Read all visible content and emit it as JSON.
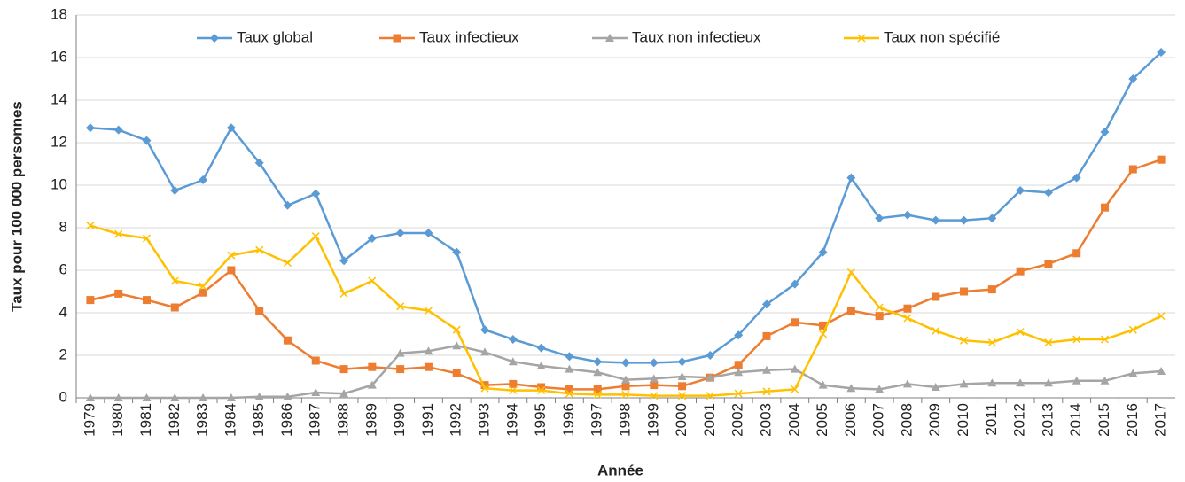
{
  "chart_data": {
    "type": "line",
    "x_label": "Année",
    "y_label": "Taux pour 100 000 personnes",
    "categories": [
      "1979",
      "1980",
      "1981",
      "1982",
      "1983",
      "1984",
      "1985",
      "1986",
      "1987",
      "1988",
      "1989",
      "1990",
      "1991",
      "1992",
      "1993",
      "1994",
      "1995",
      "1996",
      "1997",
      "1998",
      "1999",
      "2000",
      "2001",
      "2002",
      "2003",
      "2004",
      "2005",
      "2006",
      "2007",
      "2008",
      "2009",
      "2010",
      "2011",
      "2012",
      "2013",
      "2014",
      "2015",
      "2016",
      "2017"
    ],
    "series": [
      {
        "name": "Taux global",
        "color": "#5b9bd5",
        "marker": "diamond",
        "values": [
          12.7,
          12.6,
          12.1,
          9.75,
          10.25,
          12.7,
          11.05,
          9.05,
          9.6,
          6.45,
          7.5,
          7.75,
          7.75,
          6.85,
          3.2,
          2.75,
          2.35,
          1.95,
          1.7,
          1.65,
          1.65,
          1.7,
          2.0,
          2.95,
          4.4,
          5.35,
          6.85,
          10.35,
          8.45,
          8.6,
          8.35,
          8.35,
          8.45,
          9.75,
          9.65,
          10.35,
          12.5,
          15.0,
          16.25
        ]
      },
      {
        "name": "Taux infectieux",
        "color": "#ed7d31",
        "marker": "square",
        "values": [
          4.6,
          4.9,
          4.6,
          4.25,
          4.95,
          6.0,
          4.1,
          2.7,
          1.75,
          1.35,
          1.45,
          1.35,
          1.45,
          1.15,
          0.6,
          0.65,
          0.5,
          0.4,
          0.4,
          0.55,
          0.6,
          0.55,
          0.95,
          1.55,
          2.9,
          3.55,
          3.4,
          4.1,
          3.85,
          4.2,
          4.75,
          5.0,
          5.1,
          5.95,
          6.3,
          6.8,
          8.95,
          10.75,
          11.2
        ]
      },
      {
        "name": "Taux non infectieux",
        "color": "#a5a5a5",
        "marker": "triangle",
        "values": [
          0,
          0,
          0,
          0,
          0,
          0,
          0.05,
          0.05,
          0.25,
          0.2,
          0.6,
          2.1,
          2.2,
          2.45,
          2.15,
          1.7,
          1.5,
          1.35,
          1.2,
          0.85,
          0.9,
          1.0,
          0.95,
          1.2,
          1.3,
          1.35,
          0.6,
          0.45,
          0.4,
          0.65,
          0.5,
          0.65,
          0.7,
          0.7,
          0.7,
          0.8,
          0.8,
          1.15,
          1.25
        ]
      },
      {
        "name": "Taux non spécifié",
        "color": "#ffc000",
        "marker": "x",
        "values": [
          8.1,
          7.7,
          7.5,
          5.5,
          5.25,
          6.7,
          6.95,
          6.35,
          7.6,
          4.9,
          5.5,
          4.3,
          4.1,
          3.2,
          0.45,
          0.35,
          0.35,
          0.2,
          0.15,
          0.15,
          0.1,
          0.1,
          0.1,
          0.2,
          0.3,
          0.4,
          3.0,
          5.9,
          4.25,
          3.75,
          3.15,
          2.7,
          2.6,
          3.1,
          2.6,
          2.75,
          2.75,
          3.2,
          3.85
        ]
      }
    ],
    "ylim": [
      0,
      18
    ],
    "yticks": [
      0,
      2,
      4,
      6,
      8,
      10,
      12,
      14,
      16,
      18
    ],
    "grid": true,
    "legend": "top"
  }
}
